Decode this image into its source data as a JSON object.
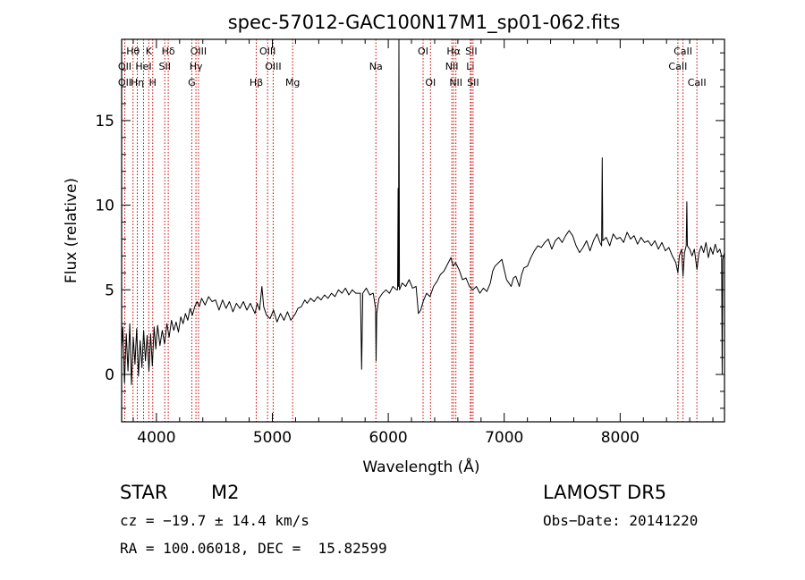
{
  "chart_data": {
    "type": "line",
    "title": "spec-57012-GAC100N17M1_sp01-062.fits",
    "xlabel": "Wavelength (Å)",
    "ylabel": "Flux (relative)",
    "xlim": [
      3700,
      8900
    ],
    "ylim": [
      -2.8,
      19.8
    ],
    "xticks": [
      4000,
      5000,
      6000,
      7000,
      8000
    ],
    "yticks": [
      0,
      5,
      10,
      15
    ],
    "grid": false,
    "legend": "none",
    "line_color": "#000000",
    "marker_color": "#cc0000",
    "lines": [
      {
        "label": "Hθ",
        "wl": 3798,
        "row": 0
      },
      {
        "label": "OII",
        "wl": 3727,
        "row": 1
      },
      {
        "label": "OII",
        "wl": 3727,
        "row": 2
      },
      {
        "label": "Hη",
        "wl": 3835,
        "row": 2
      },
      {
        "label": "K",
        "wl": 3934,
        "row": 0
      },
      {
        "label": "HeI",
        "wl": 3889,
        "row": 1
      },
      {
        "label": "H",
        "wl": 3968,
        "row": 2
      },
      {
        "label": "Hδ",
        "wl": 4102,
        "row": 0
      },
      {
        "label": "SII",
        "wl": 4072,
        "row": 1
      },
      {
        "label": "OIII",
        "wl": 4363,
        "row": 0
      },
      {
        "label": "Hγ",
        "wl": 4341,
        "row": 1
      },
      {
        "label": "G",
        "wl": 4305,
        "row": 2
      },
      {
        "label": "OIII",
        "wl": 4959,
        "row": 0
      },
      {
        "label": "OIII",
        "wl": 5007,
        "row": 1
      },
      {
        "label": "Hβ",
        "wl": 4861,
        "row": 2
      },
      {
        "label": "Mg",
        "wl": 5175,
        "row": 2
      },
      {
        "label": "Na",
        "wl": 5893,
        "row": 1
      },
      {
        "label": "OI",
        "wl": 6300,
        "row": 0
      },
      {
        "label": "OI",
        "wl": 6364,
        "row": 2
      },
      {
        "label": "Hα",
        "wl": 6563,
        "row": 0
      },
      {
        "label": "NII",
        "wl": 6548,
        "row": 1
      },
      {
        "label": "NII",
        "wl": 6583,
        "row": 2
      },
      {
        "label": "SII",
        "wl": 6716,
        "row": 0
      },
      {
        "label": "Li",
        "wl": 6708,
        "row": 1
      },
      {
        "label": "SII",
        "wl": 6731,
        "row": 2
      },
      {
        "label": "CaII",
        "wl": 8542,
        "row": 0
      },
      {
        "label": "CaII",
        "wl": 8498,
        "row": 1
      },
      {
        "label": "CaII",
        "wl": 8662,
        "row": 2
      }
    ],
    "spectrum": [
      [
        3700,
        1.5
      ],
      [
        3710,
        2.8
      ],
      [
        3725,
        -0.5
      ],
      [
        3740,
        2.4
      ],
      [
        3755,
        0.2
      ],
      [
        3770,
        3.0
      ],
      [
        3785,
        -0.6
      ],
      [
        3800,
        2.2
      ],
      [
        3815,
        0.6
      ],
      [
        3830,
        2.7
      ],
      [
        3845,
        -0.1
      ],
      [
        3860,
        2.0
      ],
      [
        3875,
        0.4
      ],
      [
        3890,
        2.6
      ],
      [
        3905,
        0.8
      ],
      [
        3920,
        2.3
      ],
      [
        3935,
        0.2
      ],
      [
        3950,
        2.4
      ],
      [
        3965,
        0.5
      ],
      [
        3980,
        2.8
      ],
      [
        3995,
        1.5
      ],
      [
        4010,
        2.9
      ],
      [
        4030,
        1.7
      ],
      [
        4050,
        2.6
      ],
      [
        4070,
        1.8
      ],
      [
        4090,
        3.0
      ],
      [
        4110,
        2.2
      ],
      [
        4130,
        3.2
      ],
      [
        4150,
        2.6
      ],
      [
        4170,
        3.1
      ],
      [
        4190,
        2.5
      ],
      [
        4210,
        3.4
      ],
      [
        4230,
        3.0
      ],
      [
        4250,
        3.6
      ],
      [
        4270,
        3.2
      ],
      [
        4290,
        3.9
      ],
      [
        4310,
        3.5
      ],
      [
        4330,
        4.0
      ],
      [
        4350,
        4.3
      ],
      [
        4370,
        4.0
      ],
      [
        4390,
        4.5
      ],
      [
        4420,
        4.1
      ],
      [
        4450,
        4.6
      ],
      [
        4480,
        4.3
      ],
      [
        4510,
        4.4
      ],
      [
        4540,
        3.8
      ],
      [
        4570,
        4.4
      ],
      [
        4600,
        3.9
      ],
      [
        4630,
        4.3
      ],
      [
        4660,
        3.7
      ],
      [
        4690,
        4.2
      ],
      [
        4720,
        3.9
      ],
      [
        4750,
        4.3
      ],
      [
        4780,
        3.8
      ],
      [
        4810,
        4.2
      ],
      [
        4850,
        3.6
      ],
      [
        4870,
        4.2
      ],
      [
        4890,
        3.8
      ],
      [
        4910,
        5.2
      ],
      [
        4925,
        4.0
      ],
      [
        4950,
        3.5
      ],
      [
        4980,
        3.3
      ],
      [
        5010,
        3.8
      ],
      [
        5040,
        3.1
      ],
      [
        5070,
        3.6
      ],
      [
        5100,
        3.2
      ],
      [
        5130,
        3.7
      ],
      [
        5160,
        3.2
      ],
      [
        5200,
        3.6
      ],
      [
        5220,
        3.9
      ],
      [
        5250,
        4.0
      ],
      [
        5280,
        4.4
      ],
      [
        5300,
        4.2
      ],
      [
        5330,
        4.5
      ],
      [
        5360,
        4.3
      ],
      [
        5390,
        4.6
      ],
      [
        5420,
        4.4
      ],
      [
        5450,
        4.7
      ],
      [
        5480,
        4.5
      ],
      [
        5510,
        4.8
      ],
      [
        5540,
        4.6
      ],
      [
        5570,
        5.0
      ],
      [
        5600,
        4.8
      ],
      [
        5630,
        5.1
      ],
      [
        5660,
        4.7
      ],
      [
        5690,
        5.0
      ],
      [
        5720,
        4.8
      ],
      [
        5760,
        4.8
      ],
      [
        5770,
        0.3
      ],
      [
        5780,
        4.8
      ],
      [
        5810,
        5.1
      ],
      [
        5840,
        4.7
      ],
      [
        5870,
        4.8
      ],
      [
        5890,
        3.9
      ],
      [
        5895,
        0.8
      ],
      [
        5900,
        3.6
      ],
      [
        5920,
        4.5
      ],
      [
        5950,
        4.8
      ],
      [
        5980,
        5.0
      ],
      [
        6010,
        4.8
      ],
      [
        6040,
        5.2
      ],
      [
        6070,
        5.0
      ],
      [
        6080,
        5.0
      ],
      [
        6085,
        11.0
      ],
      [
        6088,
        5.2
      ],
      [
        6092,
        19.8
      ],
      [
        6096,
        5.0
      ],
      [
        6120,
        5.4
      ],
      [
        6150,
        5.2
      ],
      [
        6180,
        5.6
      ],
      [
        6210,
        5.1
      ],
      [
        6240,
        5.2
      ],
      [
        6260,
        3.6
      ],
      [
        6280,
        3.8
      ],
      [
        6300,
        4.3
      ],
      [
        6330,
        4.8
      ],
      [
        6360,
        4.6
      ],
      [
        6390,
        5.2
      ],
      [
        6420,
        5.5
      ],
      [
        6450,
        5.9
      ],
      [
        6480,
        6.1
      ],
      [
        6510,
        6.5
      ],
      [
        6540,
        6.9
      ],
      [
        6560,
        6.4
      ],
      [
        6580,
        6.6
      ],
      [
        6610,
        6.2
      ],
      [
        6640,
        5.6
      ],
      [
        6670,
        5.7
      ],
      [
        6700,
        5.2
      ],
      [
        6730,
        5.0
      ],
      [
        6760,
        5.2
      ],
      [
        6790,
        4.8
      ],
      [
        6820,
        5.1
      ],
      [
        6850,
        4.9
      ],
      [
        6880,
        5.4
      ],
      [
        6900,
        6.1
      ],
      [
        6920,
        6.4
      ],
      [
        6950,
        6.6
      ],
      [
        6980,
        6.8
      ],
      [
        7000,
        6.2
      ],
      [
        7020,
        5.6
      ],
      [
        7040,
        5.4
      ],
      [
        7060,
        5.2
      ],
      [
        7080,
        5.7
      ],
      [
        7100,
        5.8
      ],
      [
        7130,
        5.2
      ],
      [
        7150,
        5.9
      ],
      [
        7170,
        6.3
      ],
      [
        7200,
        6.4
      ],
      [
        7230,
        6.9
      ],
      [
        7260,
        7.3
      ],
      [
        7290,
        7.6
      ],
      [
        7320,
        7.5
      ],
      [
        7350,
        7.8
      ],
      [
        7380,
        8.0
      ],
      [
        7410,
        7.4
      ],
      [
        7440,
        7.9
      ],
      [
        7470,
        8.1
      ],
      [
        7500,
        7.8
      ],
      [
        7530,
        8.2
      ],
      [
        7560,
        8.5
      ],
      [
        7590,
        8.2
      ],
      [
        7620,
        7.6
      ],
      [
        7650,
        7.2
      ],
      [
        7680,
        7.5
      ],
      [
        7710,
        7.9
      ],
      [
        7740,
        7.3
      ],
      [
        7770,
        7.9
      ],
      [
        7800,
        8.3
      ],
      [
        7825,
        7.8
      ],
      [
        7840,
        7.6
      ],
      [
        7845,
        12.8
      ],
      [
        7850,
        7.9
      ],
      [
        7880,
        8.1
      ],
      [
        7910,
        7.6
      ],
      [
        7940,
        8.3
      ],
      [
        7970,
        8.0
      ],
      [
        8000,
        8.1
      ],
      [
        8030,
        7.8
      ],
      [
        8060,
        8.4
      ],
      [
        8090,
        8.0
      ],
      [
        8120,
        8.2
      ],
      [
        8150,
        7.7
      ],
      [
        8180,
        8.1
      ],
      [
        8210,
        7.8
      ],
      [
        8240,
        7.9
      ],
      [
        8270,
        7.6
      ],
      [
        8300,
        7.9
      ],
      [
        8330,
        7.4
      ],
      [
        8360,
        7.8
      ],
      [
        8390,
        7.3
      ],
      [
        8420,
        7.5
      ],
      [
        8450,
        7.0
      ],
      [
        8480,
        6.6
      ],
      [
        8498,
        6.0
      ],
      [
        8510,
        7.0
      ],
      [
        8530,
        7.4
      ],
      [
        8542,
        5.8
      ],
      [
        8555,
        7.2
      ],
      [
        8570,
        7.6
      ],
      [
        8575,
        10.2
      ],
      [
        8580,
        7.6
      ],
      [
        8600,
        7.4
      ],
      [
        8620,
        7.0
      ],
      [
        8640,
        7.4
      ],
      [
        8662,
        6.2
      ],
      [
        8680,
        7.2
      ],
      [
        8700,
        7.6
      ],
      [
        8720,
        7.2
      ],
      [
        8740,
        7.8
      ],
      [
        8760,
        6.9
      ],
      [
        8780,
        7.5
      ],
      [
        8800,
        7.1
      ],
      [
        8820,
        7.7
      ],
      [
        8840,
        7.2
      ],
      [
        8860,
        7.4
      ],
      [
        8875,
        7.0
      ],
      [
        8880,
        0.0
      ],
      [
        8885,
        6.8
      ],
      [
        8900,
        7.2
      ]
    ]
  },
  "info": {
    "object_class": "STAR",
    "subclass": "M2",
    "survey": "LAMOST DR5",
    "velocity": "cz = −19.7 ± 14.4 km/s",
    "obs_date": "Obs−Date: 20141220",
    "coords": "RA = 100.06018, DEC =  15.82599"
  }
}
